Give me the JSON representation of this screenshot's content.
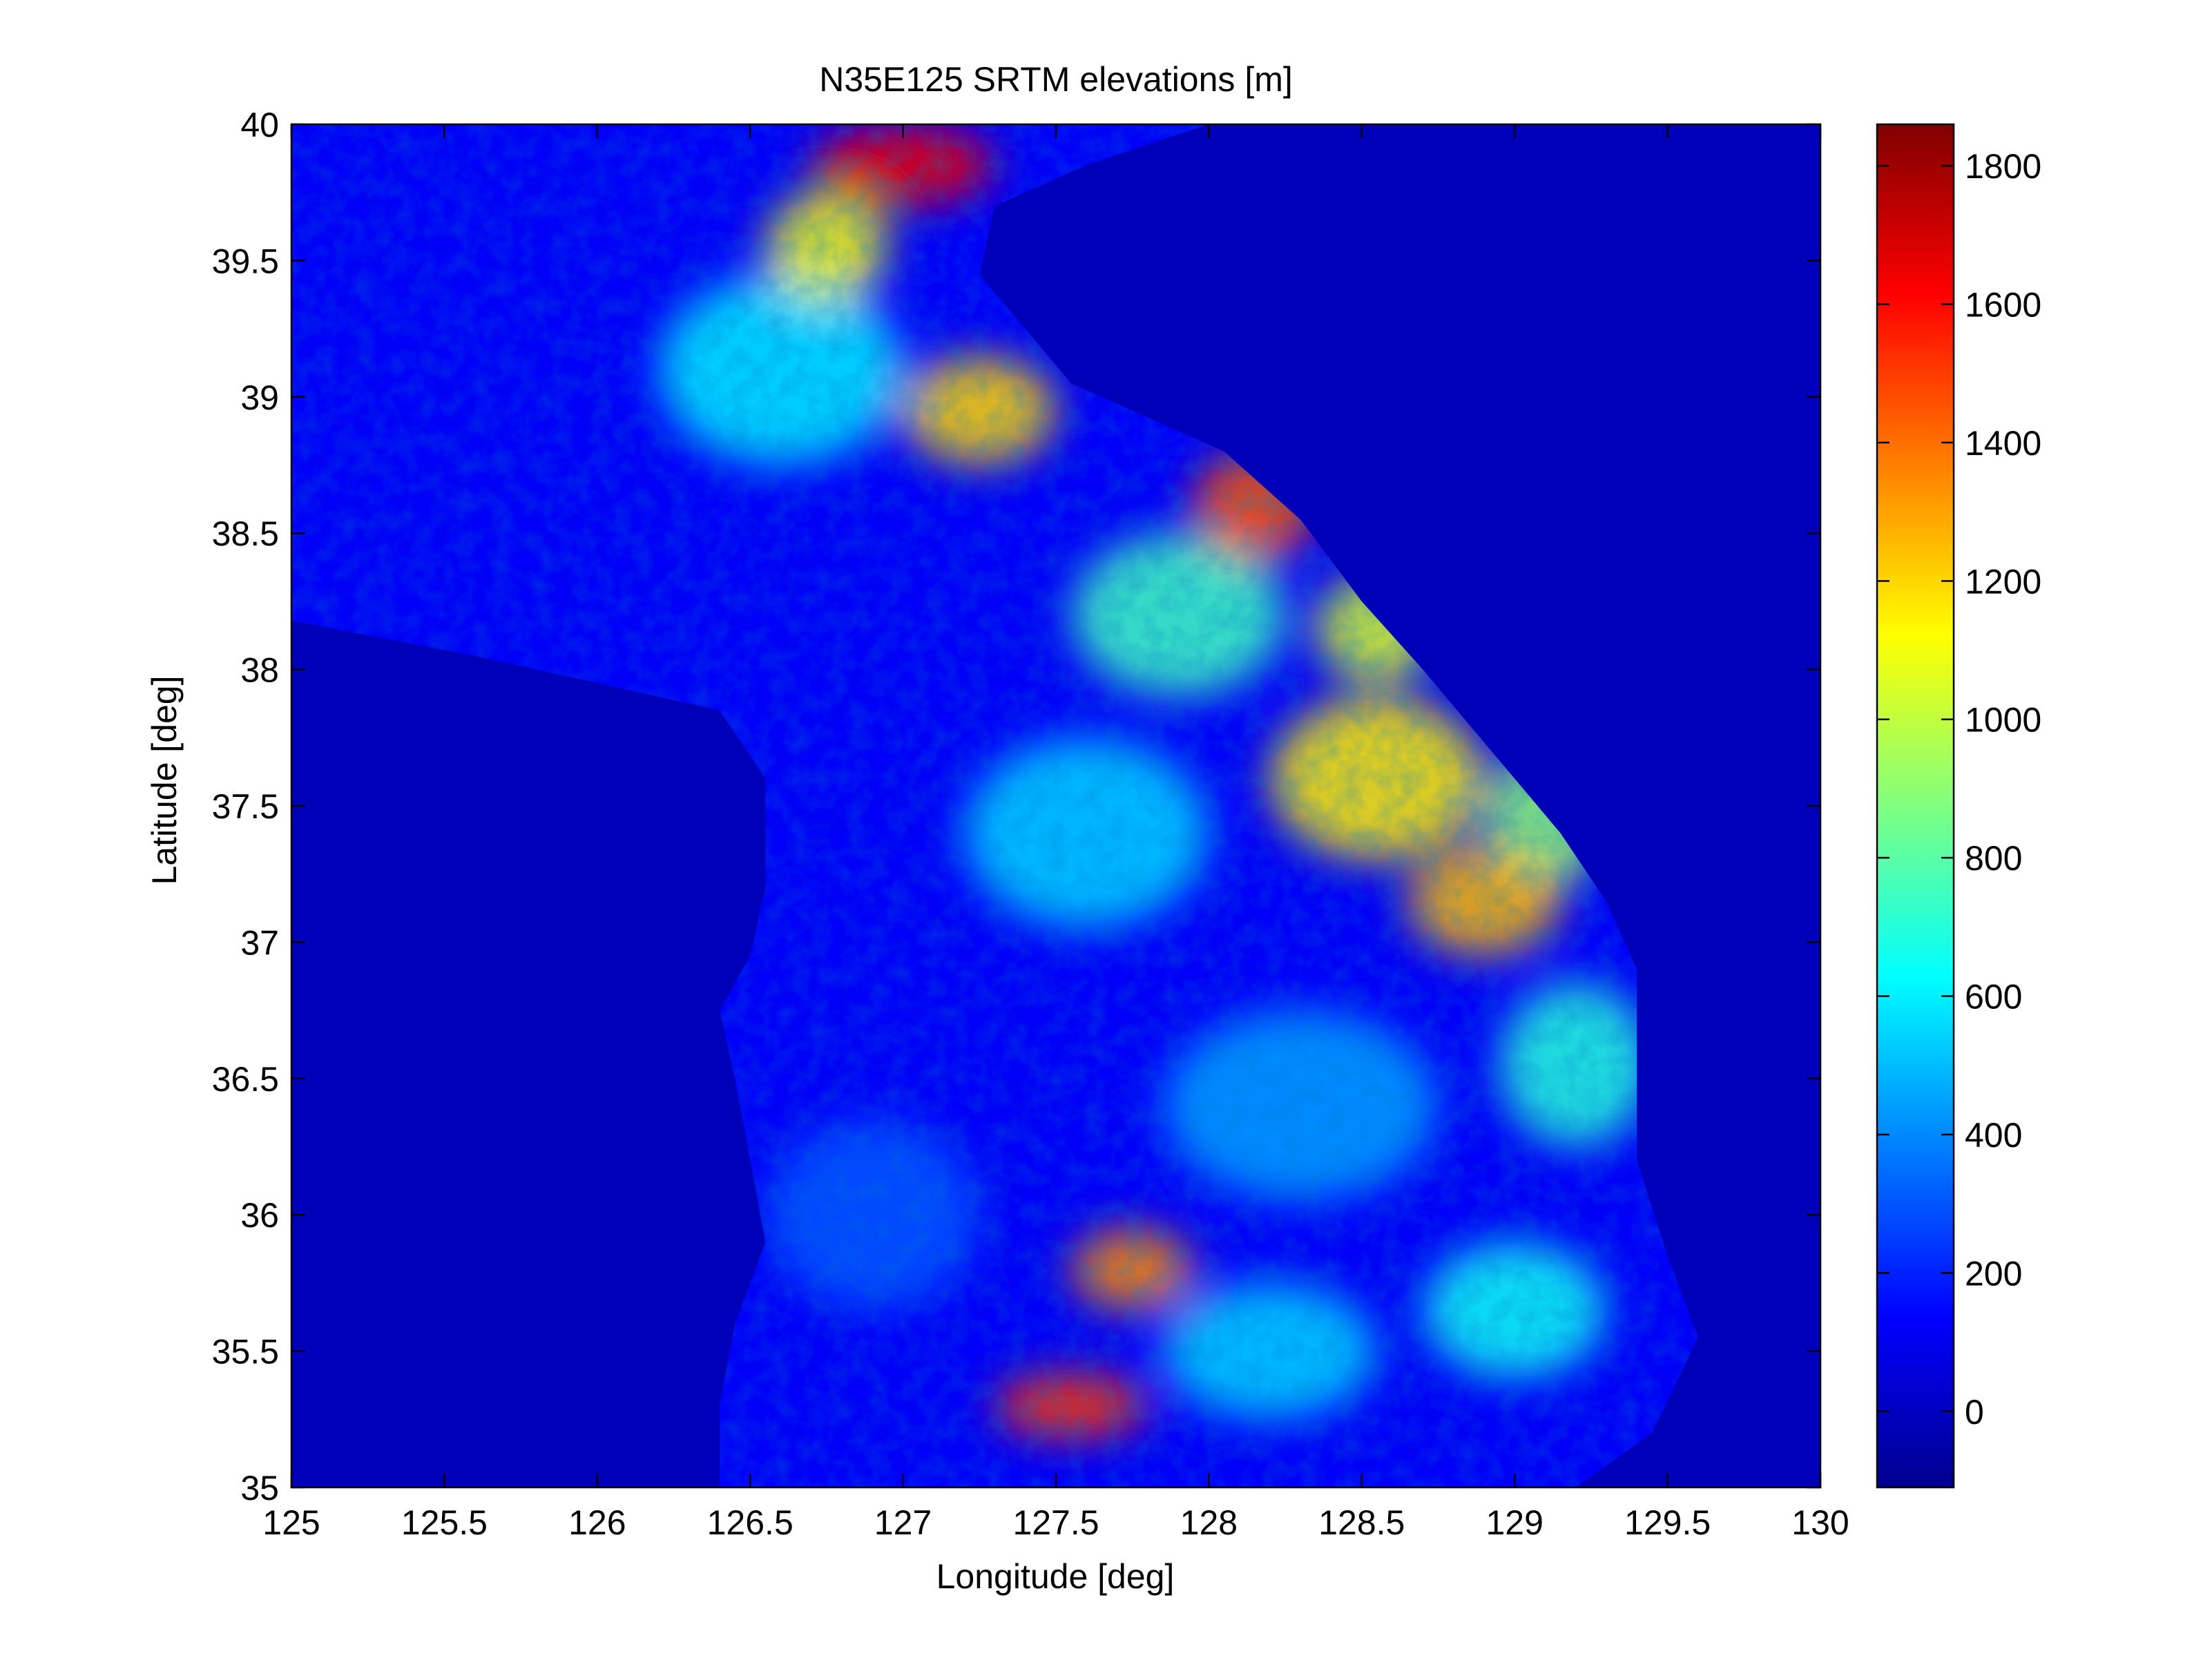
{
  "chart_data": {
    "type": "heatmap",
    "title": "N35E125 SRTM elevations [m]",
    "xlabel": "Longitude [deg]",
    "ylabel": "Latitude [deg]",
    "xlim": [
      125,
      130
    ],
    "ylim": [
      35,
      40
    ],
    "x_ticks": [
      125,
      125.5,
      126,
      126.5,
      127,
      127.5,
      128,
      128.5,
      129,
      129.5,
      130
    ],
    "x_tick_labels": [
      "125",
      "125.5",
      "126",
      "126.5",
      "127",
      "127.5",
      "128",
      "128.5",
      "129",
      "129.5",
      "130"
    ],
    "y_ticks": [
      35,
      35.5,
      36,
      36.5,
      37,
      37.5,
      38,
      38.5,
      39,
      39.5,
      40
    ],
    "y_tick_labels": [
      "35",
      "35.5",
      "36",
      "36.5",
      "37",
      "37.5",
      "38",
      "38.5",
      "39",
      "39.5",
      "40"
    ],
    "grid": false,
    "colormap": "jet",
    "colorbar": {
      "range": [
        -110,
        1860
      ],
      "ticks": [
        0,
        200,
        400,
        600,
        800,
        1000,
        1200,
        1400,
        1600,
        1800
      ],
      "tick_labels": [
        "0",
        "200",
        "400",
        "600",
        "800",
        "1000",
        "1200",
        "1400",
        "1600",
        "1800"
      ],
      "placement": "right"
    },
    "coastline_lon_lat": [
      [
        125.0,
        38.18
      ],
      [
        125.6,
        38.05
      ],
      [
        126.0,
        37.95
      ],
      [
        126.4,
        37.85
      ],
      [
        126.55,
        37.6
      ],
      [
        126.55,
        37.2
      ],
      [
        126.5,
        36.95
      ],
      [
        126.4,
        36.75
      ],
      [
        126.45,
        36.5
      ],
      [
        126.5,
        36.2
      ],
      [
        126.55,
        35.9
      ],
      [
        126.45,
        35.6
      ],
      [
        126.4,
        35.3
      ],
      [
        126.4,
        35.0
      ],
      [
        129.2,
        35.0
      ],
      [
        129.45,
        35.2
      ],
      [
        129.6,
        35.55
      ],
      [
        129.5,
        35.85
      ],
      [
        129.4,
        36.2
      ],
      [
        129.4,
        36.5
      ],
      [
        129.4,
        36.9
      ],
      [
        129.3,
        37.15
      ],
      [
        129.15,
        37.4
      ],
      [
        129.0,
        37.6
      ],
      [
        128.85,
        37.8
      ],
      [
        128.7,
        38.0
      ],
      [
        128.5,
        38.25
      ],
      [
        128.3,
        38.55
      ],
      [
        128.05,
        38.8
      ],
      [
        127.75,
        38.95
      ],
      [
        127.55,
        39.05
      ],
      [
        127.4,
        39.25
      ],
      [
        127.25,
        39.45
      ],
      [
        127.3,
        39.7
      ],
      [
        127.6,
        39.85
      ],
      [
        128.0,
        40.0
      ],
      [
        125.0,
        40.0
      ]
    ],
    "regions": [
      {
        "center": [
          128.55,
          37.6
        ],
        "radius_deg": [
          0.35,
          0.3
        ],
        "elevation_m": 1150
      },
      {
        "center": [
          128.9,
          37.15
        ],
        "radius_deg": [
          0.25,
          0.2
        ],
        "elevation_m": 1250
      },
      {
        "center": [
          128.15,
          38.6
        ],
        "radius_deg": [
          0.2,
          0.2
        ],
        "elevation_m": 1450
      },
      {
        "center": [
          127.0,
          39.85
        ],
        "radius_deg": [
          0.3,
          0.15
        ],
        "elevation_m": 1650
      },
      {
        "center": [
          127.55,
          35.3
        ],
        "radius_deg": [
          0.25,
          0.12
        ],
        "elevation_m": 1500
      },
      {
        "center": [
          127.75,
          35.8
        ],
        "radius_deg": [
          0.2,
          0.15
        ],
        "elevation_m": 1350
      },
      {
        "center": [
          127.25,
          38.95
        ],
        "radius_deg": [
          0.25,
          0.2
        ],
        "elevation_m": 1200
      },
      {
        "center": [
          126.75,
          39.55
        ],
        "radius_deg": [
          0.2,
          0.2
        ],
        "elevation_m": 1100
      },
      {
        "center": [
          128.55,
          38.15
        ],
        "radius_deg": [
          0.2,
          0.2
        ],
        "elevation_m": 1050
      },
      {
        "center": [
          129.1,
          37.45
        ],
        "radius_deg": [
          0.2,
          0.25
        ],
        "elevation_m": 900
      },
      {
        "center": [
          127.9,
          38.2
        ],
        "radius_deg": [
          0.35,
          0.3
        ],
        "elevation_m": 750
      },
      {
        "center": [
          127.6,
          37.4
        ],
        "radius_deg": [
          0.4,
          0.35
        ],
        "elevation_m": 550
      },
      {
        "center": [
          126.6,
          39.1
        ],
        "radius_deg": [
          0.4,
          0.35
        ],
        "elevation_m": 600
      },
      {
        "center": [
          129.2,
          36.55
        ],
        "radius_deg": [
          0.25,
          0.3
        ],
        "elevation_m": 700
      },
      {
        "center": [
          129.0,
          35.65
        ],
        "radius_deg": [
          0.3,
          0.25
        ],
        "elevation_m": 650
      },
      {
        "center": [
          128.2,
          35.5
        ],
        "radius_deg": [
          0.35,
          0.25
        ],
        "elevation_m": 550
      },
      {
        "center": [
          128.3,
          36.4
        ],
        "radius_deg": [
          0.45,
          0.35
        ],
        "elevation_m": 450
      },
      {
        "center": [
          126.9,
          36.0
        ],
        "radius_deg": [
          0.35,
          0.35
        ],
        "elevation_m": 300
      }
    ]
  }
}
